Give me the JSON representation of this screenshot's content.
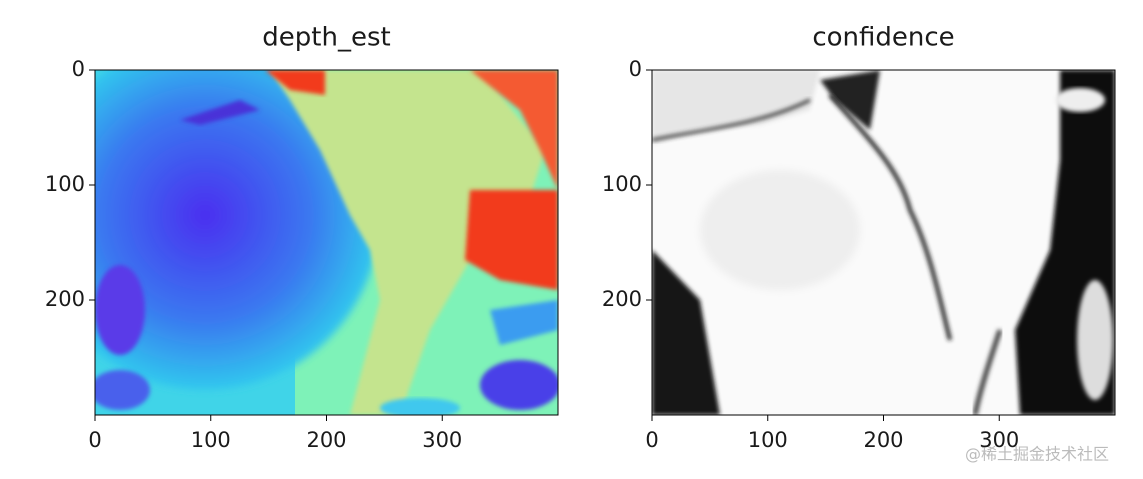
{
  "chart_data": [
    {
      "type": "image",
      "title": "depth_est",
      "xlim": [
        0,
        400
      ],
      "ylim": [
        300,
        0
      ],
      "xticks": [
        0,
        100,
        200,
        300
      ],
      "yticks": [
        0,
        100,
        200
      ]
    },
    {
      "type": "image",
      "title": "confidence",
      "xlim": [
        0,
        400
      ],
      "ylim": [
        300,
        0
      ],
      "xticks": [
        0,
        100,
        200,
        300
      ],
      "yticks": [
        0,
        100,
        200
      ]
    }
  ],
  "watermark": "@稀土掘金技术社区"
}
